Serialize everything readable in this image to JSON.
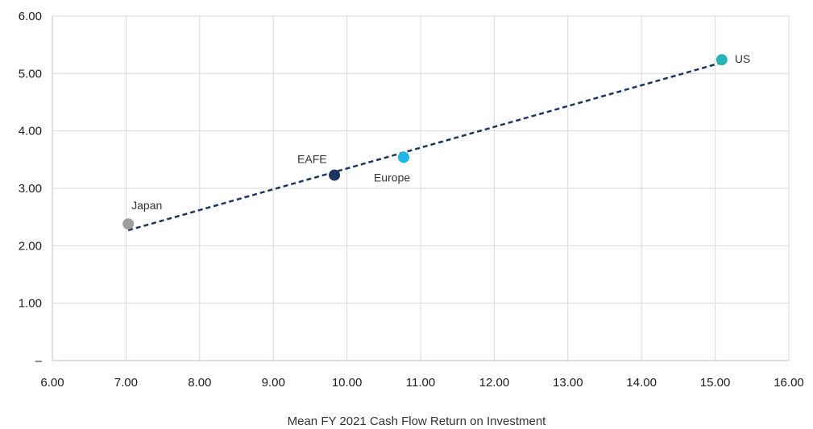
{
  "chart_data": {
    "type": "scatter",
    "xlabel": "Mean FY 2021 Cash Flow Return on Investment",
    "ylabel": "",
    "xlim": [
      6,
      16
    ],
    "ylim": [
      0,
      6
    ],
    "x_ticks": [
      "6.00",
      "7.00",
      "8.00",
      "9.00",
      "10.00",
      "11.00",
      "12.00",
      "13.00",
      "14.00",
      "15.00",
      "16.00"
    ],
    "y_ticks": [
      "–",
      "1.00",
      "2.00",
      "3.00",
      "4.00",
      "5.00",
      "6.00"
    ],
    "grid": true,
    "points": [
      {
        "name": "Japan",
        "x": 7.03,
        "y": 2.38,
        "color": "#9e9e9e"
      },
      {
        "name": "EAFE",
        "x": 9.83,
        "y": 3.23,
        "color": "#1b3560"
      },
      {
        "name": "Europe",
        "x": 10.77,
        "y": 3.54,
        "color": "#1fb8e6"
      },
      {
        "name": "US",
        "x": 15.09,
        "y": 5.24,
        "color": "#2ab3b5"
      }
    ],
    "trendline": {
      "style": "dashed",
      "color": "#1b3560",
      "from": [
        7.03,
        2.27
      ],
      "to": [
        15.09,
        5.19
      ]
    }
  }
}
